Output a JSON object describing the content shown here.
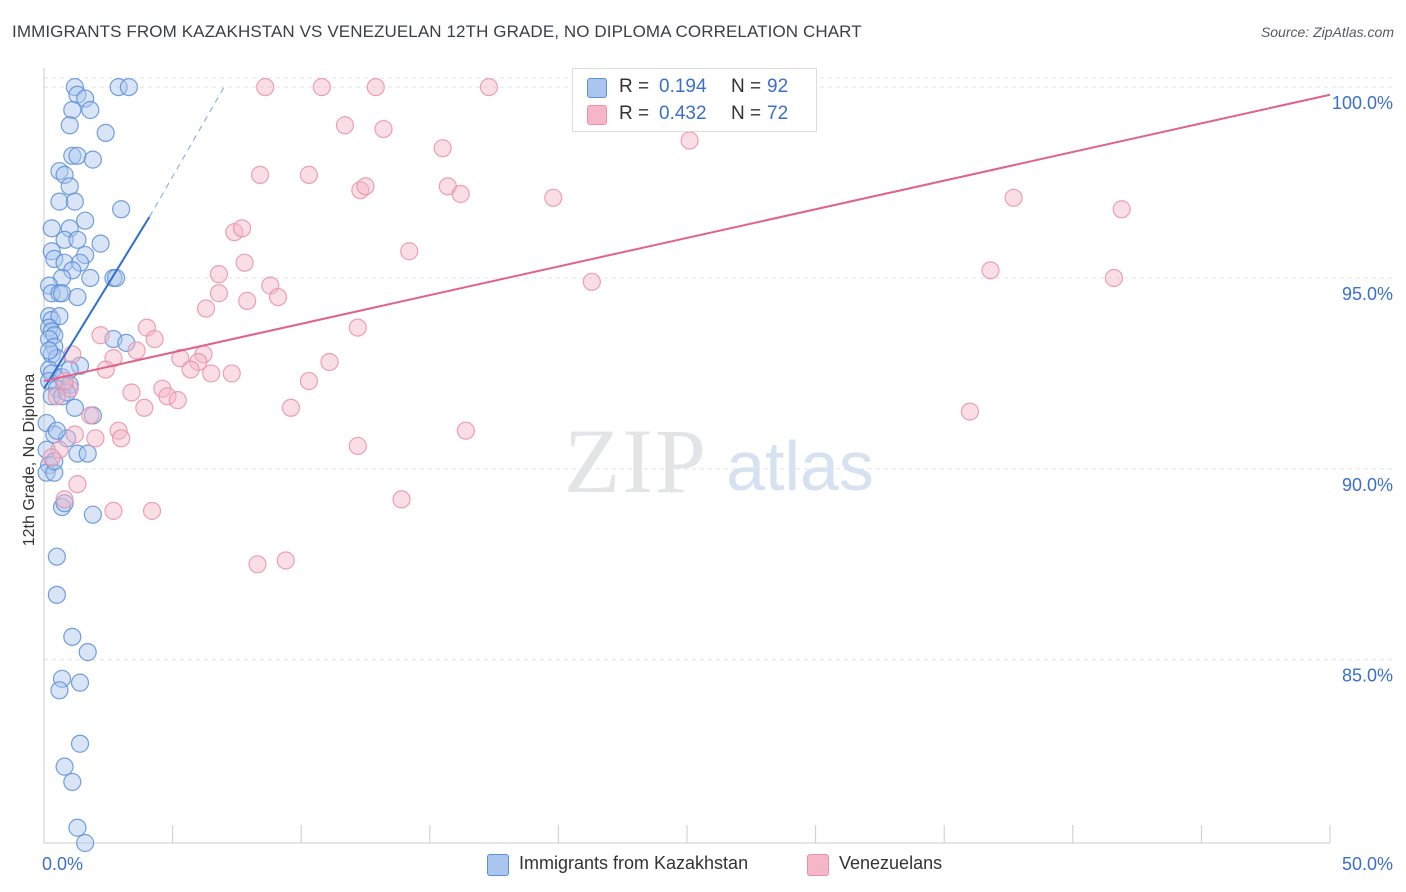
{
  "title": "IMMIGRANTS FROM KAZAKHSTAN VS VENEZUELAN 12TH GRADE, NO DIPLOMA CORRELATION CHART",
  "source": "Source: ZipAtlas.com",
  "watermark": {
    "zip": "ZIP",
    "atlas": "atlas"
  },
  "legend": {
    "rows": [
      {
        "r_label": "R =",
        "r_value": "0.194",
        "n_label": "N =",
        "n_value": "92"
      },
      {
        "r_label": "R =",
        "r_value": "0.432",
        "n_label": "N =",
        "n_value": "72"
      }
    ]
  },
  "bottom_legend": {
    "series1": "Immigrants from Kazakhstan",
    "series2": "Venezuelans"
  },
  "colors": {
    "blue_fill": "#aac6ee",
    "blue_stroke": "#5b8fd6",
    "blue_line": "#2f6fd0",
    "pink_fill": "#f5b6c8",
    "pink_stroke": "#e890ac",
    "pink_line": "#e0628c",
    "tick_label": "#3b6fcc",
    "grid": "#dfe3e8"
  },
  "chart_data": {
    "type": "scatter",
    "title": "IMMIGRANTS FROM KAZAKHSTAN VS VENEZUELAN 12TH GRADE, NO DIPLOMA CORRELATION CHART",
    "xlabel": "",
    "ylabel": "12th Grade, No Diploma",
    "xlim": [
      0,
      50
    ],
    "ylim": [
      80.2,
      100.5
    ],
    "x_tick_labels": [
      "0.0%",
      "50.0%"
    ],
    "y_ticks": [
      85,
      90,
      95,
      100
    ],
    "y_tick_labels": [
      "85.0%",
      "90.0%",
      "95.0%",
      "100.0%"
    ],
    "grid": true,
    "series": [
      {
        "name": "Immigrants from Kazakhstan",
        "color": "#5b8fd6",
        "R": 0.194,
        "N": 92,
        "trend": {
          "x": [
            0.0,
            4.1
          ],
          "y": [
            92.1,
            96.6
          ],
          "dashed_extension": {
            "x": [
              4.1,
              7.0
            ],
            "y": [
              96.6,
              100.0
            ]
          }
        },
        "points": [
          [
            1.2,
            100.0
          ],
          [
            1.3,
            99.8
          ],
          [
            2.9,
            100.0
          ],
          [
            3.3,
            100.0
          ],
          [
            1.6,
            99.7
          ],
          [
            1.1,
            99.4
          ],
          [
            1.8,
            99.4
          ],
          [
            1.0,
            99.0
          ],
          [
            2.4,
            98.8
          ],
          [
            1.1,
            98.2
          ],
          [
            1.3,
            98.2
          ],
          [
            1.9,
            98.1
          ],
          [
            0.6,
            97.8
          ],
          [
            0.8,
            97.7
          ],
          [
            1.0,
            97.4
          ],
          [
            0.6,
            97.0
          ],
          [
            1.2,
            97.0
          ],
          [
            3.0,
            96.8
          ],
          [
            1.6,
            96.5
          ],
          [
            0.3,
            96.3
          ],
          [
            1.0,
            96.3
          ],
          [
            0.8,
            96.0
          ],
          [
            1.3,
            96.0
          ],
          [
            2.2,
            95.9
          ],
          [
            0.3,
            95.7
          ],
          [
            1.6,
            95.6
          ],
          [
            0.4,
            95.5
          ],
          [
            0.8,
            95.4
          ],
          [
            1.4,
            95.4
          ],
          [
            1.1,
            95.2
          ],
          [
            0.7,
            95.0
          ],
          [
            1.8,
            95.0
          ],
          [
            2.7,
            95.0
          ],
          [
            2.8,
            95.0
          ],
          [
            0.2,
            94.8
          ],
          [
            0.3,
            94.6
          ],
          [
            0.6,
            94.6
          ],
          [
            0.7,
            94.6
          ],
          [
            1.3,
            94.5
          ],
          [
            0.2,
            94.0
          ],
          [
            0.3,
            93.9
          ],
          [
            0.6,
            94.0
          ],
          [
            0.2,
            93.7
          ],
          [
            0.3,
            93.6
          ],
          [
            0.4,
            93.5
          ],
          [
            0.2,
            93.4
          ],
          [
            2.7,
            93.4
          ],
          [
            3.2,
            93.3
          ],
          [
            0.4,
            93.2
          ],
          [
            0.3,
            93.0
          ],
          [
            0.5,
            92.9
          ],
          [
            1.4,
            92.7
          ],
          [
            0.2,
            92.6
          ],
          [
            0.3,
            92.5
          ],
          [
            0.2,
            92.3
          ],
          [
            0.7,
            92.4
          ],
          [
            0.8,
            92.2
          ],
          [
            1.0,
            92.2
          ],
          [
            0.5,
            92.1
          ],
          [
            0.3,
            91.9
          ],
          [
            0.7,
            91.9
          ],
          [
            1.2,
            91.6
          ],
          [
            1.9,
            91.4
          ],
          [
            0.1,
            91.2
          ],
          [
            0.4,
            90.9
          ],
          [
            0.9,
            90.8
          ],
          [
            0.1,
            90.5
          ],
          [
            1.3,
            90.4
          ],
          [
            1.7,
            90.4
          ],
          [
            0.2,
            90.1
          ],
          [
            0.1,
            89.9
          ],
          [
            0.4,
            89.9
          ],
          [
            0.7,
            89.0
          ],
          [
            0.8,
            89.1
          ],
          [
            1.9,
            88.8
          ],
          [
            0.5,
            87.7
          ],
          [
            0.5,
            86.7
          ],
          [
            1.1,
            85.6
          ],
          [
            1.7,
            85.2
          ],
          [
            0.7,
            84.5
          ],
          [
            1.4,
            84.4
          ],
          [
            0.6,
            84.2
          ],
          [
            1.4,
            82.8
          ],
          [
            0.8,
            82.2
          ],
          [
            1.1,
            81.8
          ],
          [
            1.3,
            80.6
          ],
          [
            1.6,
            80.2
          ],
          [
            0.4,
            90.2
          ],
          [
            0.2,
            93.1
          ],
          [
            0.9,
            92.0
          ],
          [
            0.5,
            91.0
          ],
          [
            1.0,
            92.6
          ]
        ]
      },
      {
        "name": "Venezuelans",
        "color": "#e890ac",
        "R": 0.432,
        "N": 72,
        "trend": {
          "x": [
            0.0,
            50.0
          ],
          "y": [
            92.3,
            99.8
          ]
        },
        "points": [
          [
            8.6,
            100.0
          ],
          [
            10.8,
            100.0
          ],
          [
            12.9,
            100.0
          ],
          [
            17.3,
            100.0
          ],
          [
            11.7,
            99.0
          ],
          [
            13.2,
            98.9
          ],
          [
            15.5,
            98.4
          ],
          [
            25.1,
            98.6
          ],
          [
            8.4,
            97.7
          ],
          [
            10.3,
            97.7
          ],
          [
            12.3,
            97.3
          ],
          [
            12.5,
            97.4
          ],
          [
            15.7,
            97.4
          ],
          [
            16.2,
            97.2
          ],
          [
            19.8,
            97.1
          ],
          [
            37.7,
            97.1
          ],
          [
            41.9,
            96.8
          ],
          [
            7.4,
            96.2
          ],
          [
            7.7,
            96.3
          ],
          [
            14.2,
            95.7
          ],
          [
            7.8,
            95.4
          ],
          [
            6.8,
            95.1
          ],
          [
            8.8,
            94.8
          ],
          [
            21.3,
            94.9
          ],
          [
            36.8,
            95.2
          ],
          [
            41.6,
            95.0
          ],
          [
            6.8,
            94.6
          ],
          [
            9.1,
            94.5
          ],
          [
            7.9,
            94.4
          ],
          [
            6.3,
            94.2
          ],
          [
            4.0,
            93.7
          ],
          [
            12.2,
            93.7
          ],
          [
            2.2,
            93.5
          ],
          [
            4.3,
            93.4
          ],
          [
            3.6,
            93.1
          ],
          [
            6.2,
            93.0
          ],
          [
            5.3,
            92.9
          ],
          [
            2.7,
            92.9
          ],
          [
            1.1,
            93.0
          ],
          [
            6.0,
            92.8
          ],
          [
            11.1,
            92.8
          ],
          [
            5.7,
            92.6
          ],
          [
            6.5,
            92.5
          ],
          [
            2.4,
            92.6
          ],
          [
            10.3,
            92.3
          ],
          [
            7.3,
            92.5
          ],
          [
            4.6,
            92.1
          ],
          [
            3.4,
            92.0
          ],
          [
            4.8,
            91.9
          ],
          [
            1.0,
            92.1
          ],
          [
            0.5,
            91.9
          ],
          [
            3.9,
            91.6
          ],
          [
            9.6,
            91.6
          ],
          [
            1.8,
            91.4
          ],
          [
            36.0,
            91.5
          ],
          [
            2.9,
            91.0
          ],
          [
            2.0,
            90.8
          ],
          [
            3.0,
            90.8
          ],
          [
            0.6,
            90.5
          ],
          [
            12.2,
            90.6
          ],
          [
            16.4,
            91.0
          ],
          [
            1.3,
            89.6
          ],
          [
            0.8,
            89.2
          ],
          [
            2.7,
            88.9
          ],
          [
            4.2,
            88.9
          ],
          [
            13.9,
            89.2
          ],
          [
            8.3,
            87.5
          ],
          [
            9.4,
            87.6
          ],
          [
            0.3,
            90.3
          ],
          [
            1.2,
            90.9
          ],
          [
            5.2,
            91.8
          ],
          [
            0.8,
            92.3
          ]
        ]
      }
    ]
  }
}
